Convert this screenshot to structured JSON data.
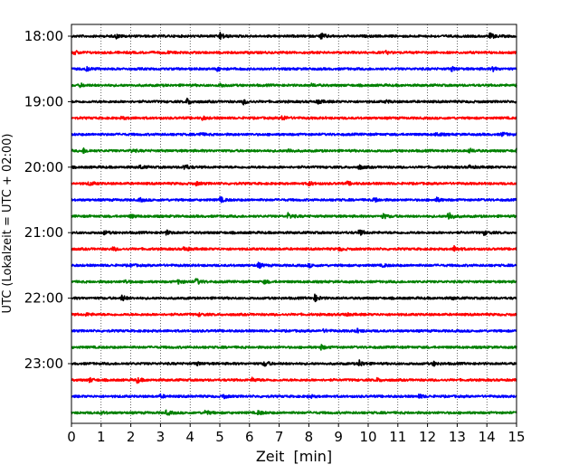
{
  "chart_data": {
    "type": "line",
    "title": "",
    "xlabel": "Zeit  [min]",
    "ylabel": "UTC (Lokalzeit = UTC + 02:00)",
    "xlim": [
      0,
      15
    ],
    "x_ticks": [
      0,
      1,
      2,
      3,
      4,
      5,
      6,
      7,
      8,
      9,
      10,
      11,
      12,
      13,
      14,
      15
    ],
    "x_tick_labels": [
      "0",
      "1",
      "2",
      "3",
      "4",
      "5",
      "6",
      "7",
      "8",
      "9",
      "10",
      "11",
      "12",
      "13",
      "14",
      "15"
    ],
    "grid": "vertical dotted lines at each minute",
    "y_tick_labels": [
      "18:00",
      "19:00",
      "20:00",
      "21:00",
      "22:00",
      "23:00"
    ],
    "rows_per_hour": 4,
    "trace_colors": [
      "#000000",
      "#ff0000",
      "#0000ff",
      "#008000"
    ],
    "series": [
      {
        "start": "18:00",
        "color": "#000000",
        "events": [
          [
            1.5,
            0.5
          ],
          [
            5.0,
            0.9
          ],
          [
            8.4,
            0.8
          ],
          [
            14.1,
            0.7
          ]
        ]
      },
      {
        "start": "18:15",
        "color": "#ff0000",
        "events": [
          [
            0.1,
            0.4
          ],
          [
            3.2,
            0.3
          ],
          [
            10.6,
            0.3
          ]
        ]
      },
      {
        "start": "18:30",
        "color": "#0000ff",
        "events": [
          [
            0.5,
            0.5
          ],
          [
            4.9,
            0.5
          ],
          [
            12.8,
            0.5
          ],
          [
            14.2,
            0.5
          ]
        ]
      },
      {
        "start": "18:45",
        "color": "#008000",
        "events": [
          [
            0.3,
            0.4
          ],
          [
            5.0,
            0.4
          ],
          [
            8.1,
            0.3
          ],
          [
            15.0,
            0.5
          ]
        ]
      },
      {
        "start": "19:00",
        "color": "#000000",
        "events": [
          [
            3.9,
            0.8
          ],
          [
            5.8,
            0.6
          ],
          [
            8.3,
            0.5
          ],
          [
            10.6,
            0.3
          ]
        ]
      },
      {
        "start": "19:15",
        "color": "#ff0000",
        "events": [
          [
            1.7,
            0.3
          ],
          [
            4.4,
            0.4
          ],
          [
            7.1,
            0.6
          ]
        ]
      },
      {
        "start": "19:30",
        "color": "#0000ff",
        "events": [
          [
            4.3,
            0.4
          ],
          [
            12.3,
            0.5
          ],
          [
            14.5,
            0.5
          ]
        ]
      },
      {
        "start": "19:45",
        "color": "#008000",
        "events": [
          [
            0.4,
            0.6
          ],
          [
            2.0,
            0.4
          ],
          [
            7.3,
            0.5
          ],
          [
            13.4,
            0.5
          ],
          [
            15.0,
            0.6
          ]
        ]
      },
      {
        "start": "20:00",
        "color": "#000000",
        "events": [
          [
            2.3,
            0.4
          ],
          [
            3.8,
            0.8
          ],
          [
            9.7,
            0.5
          ],
          [
            13.4,
            0.4
          ]
        ]
      },
      {
        "start": "20:15",
        "color": "#ff0000",
        "events": [
          [
            0.6,
            0.5
          ],
          [
            4.2,
            0.4
          ],
          [
            8.0,
            0.5
          ],
          [
            9.3,
            0.4
          ]
        ]
      },
      {
        "start": "20:30",
        "color": "#0000ff",
        "events": [
          [
            2.3,
            0.4
          ],
          [
            5.0,
            0.7
          ],
          [
            10.2,
            0.6
          ],
          [
            12.3,
            0.5
          ]
        ]
      },
      {
        "start": "20:45",
        "color": "#008000",
        "events": [
          [
            2.0,
            0.4
          ],
          [
            7.3,
            0.7
          ],
          [
            10.5,
            0.6
          ],
          [
            12.7,
            1.3
          ]
        ]
      },
      {
        "start": "21:00",
        "color": "#000000",
        "events": [
          [
            1.1,
            0.4
          ],
          [
            3.2,
            0.5
          ],
          [
            9.7,
            0.7
          ],
          [
            13.9,
            0.5
          ]
        ]
      },
      {
        "start": "21:15",
        "color": "#ff0000",
        "events": [
          [
            1.4,
            0.4
          ],
          [
            3.8,
            0.6
          ],
          [
            9.0,
            0.4
          ],
          [
            12.9,
            0.7
          ]
        ]
      },
      {
        "start": "21:30",
        "color": "#0000ff",
        "events": [
          [
            2.0,
            0.3
          ],
          [
            6.3,
            0.6
          ],
          [
            8.0,
            0.4
          ],
          [
            10.5,
            0.3
          ]
        ]
      },
      {
        "start": "21:45",
        "color": "#008000",
        "events": [
          [
            1.8,
            0.4
          ],
          [
            3.6,
            0.5
          ],
          [
            4.2,
            0.8
          ],
          [
            6.5,
            0.4
          ]
        ]
      },
      {
        "start": "22:00",
        "color": "#000000",
        "events": [
          [
            1.7,
            0.7
          ],
          [
            8.2,
            0.8
          ],
          [
            12.8,
            0.3
          ]
        ]
      },
      {
        "start": "22:15",
        "color": "#ff0000",
        "events": [
          [
            0.5,
            0.3
          ],
          [
            4.3,
            0.3
          ],
          [
            9.2,
            0.4
          ]
        ]
      },
      {
        "start": "22:30",
        "color": "#0000ff",
        "events": [
          [
            8.5,
            0.3
          ],
          [
            9.6,
            0.5
          ]
        ]
      },
      {
        "start": "22:45",
        "color": "#008000",
        "events": [
          [
            8.4,
            0.6
          ]
        ]
      },
      {
        "start": "23:00",
        "color": "#000000",
        "events": [
          [
            4.2,
            0.4
          ],
          [
            6.5,
            0.7
          ],
          [
            9.7,
            0.8
          ],
          [
            12.2,
            0.5
          ]
        ]
      },
      {
        "start": "23:15",
        "color": "#ff0000",
        "events": [
          [
            0.6,
            0.5
          ],
          [
            2.2,
            0.7
          ],
          [
            6.1,
            0.5
          ],
          [
            10.3,
            0.4
          ]
        ]
      },
      {
        "start": "23:30",
        "color": "#0000ff",
        "events": [
          [
            3.0,
            0.4
          ],
          [
            5.1,
            0.5
          ],
          [
            8.0,
            0.4
          ],
          [
            11.7,
            0.5
          ]
        ]
      },
      {
        "start": "23:45",
        "color": "#008000",
        "events": [
          [
            1.0,
            0.3
          ],
          [
            3.2,
            0.6
          ],
          [
            4.5,
            0.6
          ],
          [
            6.3,
            0.5
          ]
        ]
      }
    ]
  }
}
